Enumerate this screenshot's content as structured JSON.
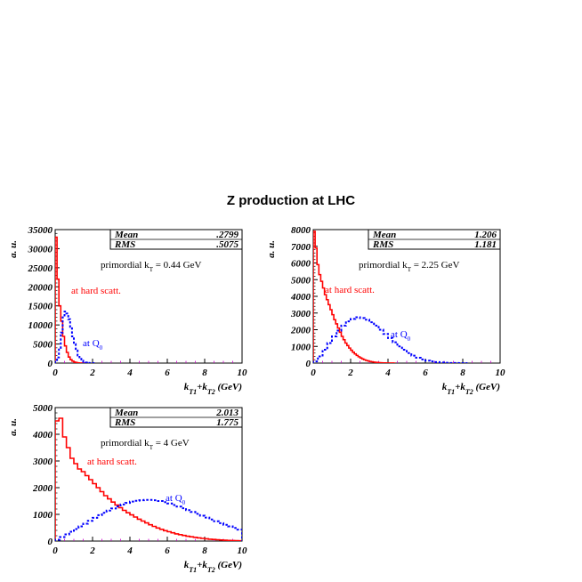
{
  "title": "Z production at LHC",
  "colors": {
    "hard": "#ff0000",
    "q0": "#0000ff",
    "axis": "#000000",
    "minor_tick": "#cc00cc"
  },
  "chart_data": [
    {
      "type": "line",
      "xlabel_parts": [
        "k",
        "T1",
        "+k",
        "T2",
        " (GeV)"
      ],
      "ylabel": "a. u.",
      "xlim": [
        0,
        10
      ],
      "ylim": [
        0,
        35000
      ],
      "xticks": [
        0,
        2,
        4,
        6,
        8,
        10
      ],
      "yticks": [
        0,
        5000,
        10000,
        15000,
        20000,
        25000,
        30000,
        35000
      ],
      "stats": [
        {
          "label": "Mean",
          "value": ".2799"
        },
        {
          "label": "RMS",
          "value": ".5075"
        }
      ],
      "note": {
        "text": "primordial k",
        "sub": "T",
        "rest": " = 0.44 GeV"
      },
      "series": [
        {
          "name": "at hard scatt.",
          "label_parts": [
            "at hard scatt."
          ],
          "style": "solid",
          "bin_width": 0.1,
          "values": [
            33000,
            22000,
            15000,
            11000,
            7000,
            4500,
            2800,
            1600,
            900,
            500,
            250,
            120,
            60,
            30,
            10,
            5,
            0
          ]
        },
        {
          "name": "at Q0",
          "label_parts": [
            "at Q",
            "0"
          ],
          "style": "dotted",
          "bin_width": 0.1,
          "values": [
            500,
            1500,
            4000,
            8000,
            12000,
            13500,
            13000,
            11500,
            9500,
            7000,
            5000,
            3300,
            2000,
            1100,
            600,
            300,
            150,
            60,
            20,
            5,
            0
          ]
        }
      ]
    },
    {
      "type": "line",
      "xlabel_parts": [
        "k",
        "T1",
        "+k",
        "T2",
        " (GeV)"
      ],
      "ylabel": "a. u.",
      "xlim": [
        0,
        10
      ],
      "ylim": [
        0,
        8000
      ],
      "xticks": [
        0,
        2,
        4,
        6,
        8,
        10
      ],
      "yticks": [
        0,
        1000,
        2000,
        3000,
        4000,
        5000,
        6000,
        7000,
        8000
      ],
      "stats": [
        {
          "label": "Mean",
          "value": "1.206"
        },
        {
          "label": "RMS",
          "value": "1.181"
        }
      ],
      "note": {
        "text": "primordial k",
        "sub": "T",
        "rest": " = 2.25 GeV"
      },
      "series": [
        {
          "name": "at hard scatt.",
          "label_parts": [
            "at hard scatt."
          ],
          "style": "solid",
          "bin_width": 0.1,
          "values": [
            7900,
            6900,
            5900,
            5300,
            4900,
            4500,
            4100,
            3800,
            3500,
            3200,
            2900,
            2600,
            2350,
            2100,
            1850,
            1600,
            1400,
            1200,
            1050,
            900,
            770,
            650,
            550,
            460,
            380,
            310,
            250,
            200,
            160,
            130,
            100,
            80,
            60,
            45,
            35,
            25,
            18,
            12,
            8,
            5,
            3,
            2,
            1,
            0
          ]
        },
        {
          "name": "at Q0",
          "label_parts": [
            "at Q",
            "0"
          ],
          "style": "dotted",
          "bin_width": 0.25,
          "values": [
            100,
            400,
            800,
            1200,
            1600,
            1950,
            2250,
            2500,
            2650,
            2750,
            2700,
            2600,
            2450,
            2250,
            2000,
            1750,
            1500,
            1250,
            1000,
            800,
            600,
            450,
            320,
            220,
            150,
            100,
            60,
            35,
            20,
            10,
            5,
            2,
            0
          ]
        }
      ]
    },
    {
      "type": "line",
      "xlabel_parts": [
        "k",
        "T1",
        "+k",
        "T2",
        " (GeV)"
      ],
      "ylabel": "a. u.",
      "xlim": [
        0,
        10
      ],
      "ylim": [
        0,
        5000
      ],
      "xticks": [
        0,
        2,
        4,
        6,
        8,
        10
      ],
      "yticks": [
        0,
        1000,
        2000,
        3000,
        4000,
        5000
      ],
      "stats": [
        {
          "label": "Mean",
          "value": "2.013"
        },
        {
          "label": "RMS",
          "value": "1.775"
        }
      ],
      "note": {
        "text": "primordial k",
        "sub": "T",
        "rest": " = 4 GeV"
      },
      "series": [
        {
          "name": "at hard scatt.",
          "label_parts": [
            "at hard scatt."
          ],
          "style": "solid",
          "bin_width": 0.2,
          "values": [
            4500,
            4600,
            3900,
            3500,
            3100,
            2900,
            2700,
            2600,
            2450,
            2300,
            2150,
            2000,
            1850,
            1700,
            1580,
            1460,
            1350,
            1250,
            1150,
            1060,
            980,
            900,
            820,
            750,
            680,
            610,
            550,
            490,
            440,
            390,
            350,
            310,
            270,
            240,
            210,
            180,
            160,
            140,
            120,
            100,
            85,
            70,
            60,
            50,
            40,
            30,
            25,
            20,
            15,
            10
          ]
        },
        {
          "name": "at Q0",
          "label_parts": [
            "at Q",
            "0"
          ],
          "style": "dotted",
          "bin_width": 0.25,
          "values": [
            50,
            150,
            250,
            350,
            450,
            550,
            650,
            760,
            870,
            970,
            1060,
            1140,
            1220,
            1300,
            1370,
            1430,
            1480,
            1510,
            1530,
            1540,
            1540,
            1530,
            1500,
            1460,
            1410,
            1350,
            1290,
            1230,
            1160,
            1090,
            1020,
            950,
            880,
            810,
            740,
            670,
            610,
            550,
            490,
            430
          ]
        }
      ]
    }
  ]
}
